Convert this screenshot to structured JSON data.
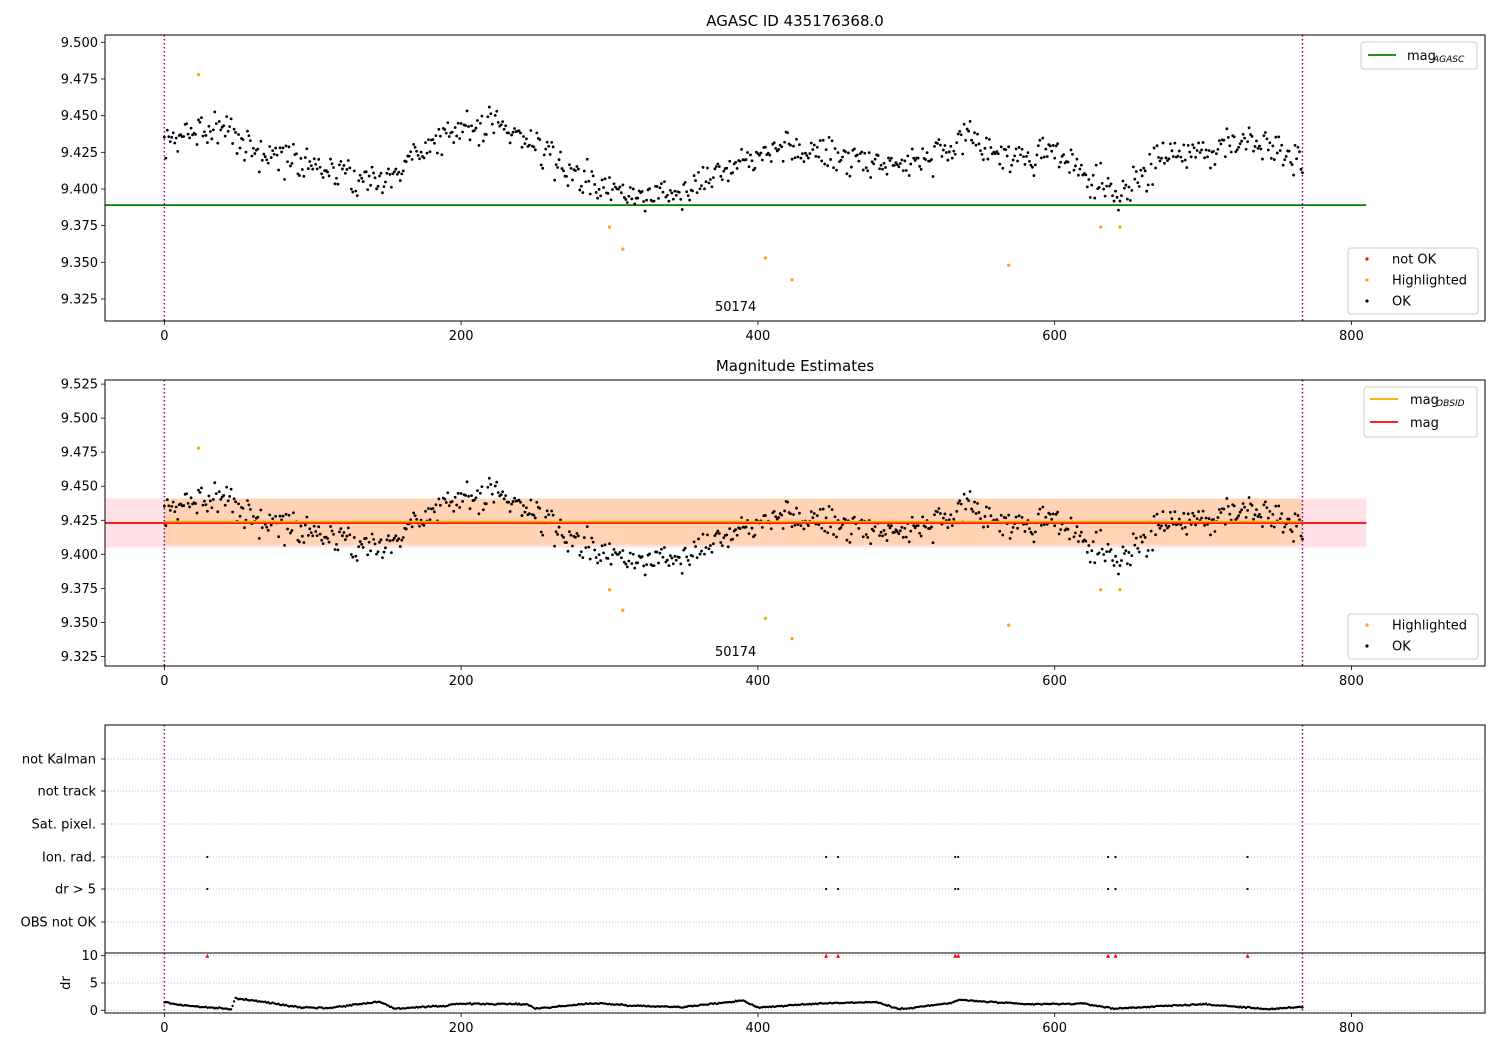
{
  "chart_data": [
    {
      "type": "scatter",
      "title": "AGASC ID 435176368.0",
      "xlim": [
        -40,
        890
      ],
      "ylim": [
        9.31,
        9.505
      ],
      "xticks": [
        0,
        200,
        400,
        600,
        800
      ],
      "yticks": [
        9.325,
        9.35,
        9.375,
        9.4,
        9.425,
        9.45,
        9.475,
        9.5
      ],
      "xlabel": "",
      "ylabel": "",
      "obsid_label": "50174",
      "obsid_label_x": 385,
      "obs_boundaries": [
        0,
        767
      ],
      "mag_agasc": 9.389,
      "mag_agasc_xrange": [
        -40,
        810
      ],
      "legend_lines": [
        {
          "name": "mag",
          "subscript": "AGASC",
          "color": "#008000"
        }
      ],
      "legend_points": [
        {
          "name": "not OK",
          "color": "#ff0000"
        },
        {
          "name": "Highlighted",
          "color": "#ffa500"
        },
        {
          "name": "OK",
          "color": "#000000"
        }
      ],
      "highlighted_points": [
        [
          23,
          9.478
        ],
        [
          300,
          9.374
        ],
        [
          309,
          9.359
        ],
        [
          405,
          9.353
        ],
        [
          423,
          9.338
        ],
        [
          569,
          9.348
        ],
        [
          631,
          9.374
        ],
        [
          644,
          9.374
        ]
      ],
      "not_ok_points": [],
      "ok_trend": [
        [
          0,
          9.428
        ],
        [
          20,
          9.44
        ],
        [
          40,
          9.445
        ],
        [
          60,
          9.425
        ],
        [
          90,
          9.42
        ],
        [
          120,
          9.41
        ],
        [
          150,
          9.405
        ],
        [
          175,
          9.43
        ],
        [
          200,
          9.44
        ],
        [
          225,
          9.445
        ],
        [
          250,
          9.43
        ],
        [
          275,
          9.41
        ],
        [
          300,
          9.398
        ],
        [
          330,
          9.395
        ],
        [
          360,
          9.405
        ],
        [
          390,
          9.42
        ],
        [
          410,
          9.43
        ],
        [
          440,
          9.425
        ],
        [
          470,
          9.42
        ],
        [
          500,
          9.418
        ],
        [
          530,
          9.425
        ],
        [
          545,
          9.435
        ],
        [
          570,
          9.42
        ],
        [
          600,
          9.425
        ],
        [
          625,
          9.405
        ],
        [
          640,
          9.395
        ],
        [
          660,
          9.41
        ],
        [
          680,
          9.425
        ],
        [
          700,
          9.425
        ],
        [
          730,
          9.435
        ],
        [
          767,
          9.42
        ]
      ]
    },
    {
      "type": "scatter",
      "title": "Magnitude Estimates",
      "xlim": [
        -40,
        890
      ],
      "ylim": [
        9.318,
        9.528
      ],
      "xticks": [
        0,
        200,
        400,
        600,
        800
      ],
      "yticks": [
        9.325,
        9.35,
        9.375,
        9.4,
        9.425,
        9.45,
        9.475,
        9.5,
        9.525
      ],
      "xlabel": "",
      "ylabel": "",
      "obsid_label": "50174",
      "obsid_label_x": 385,
      "obs_boundaries": [
        0,
        767
      ],
      "mag": 9.423,
      "mag_band": [
        9.405,
        9.441
      ],
      "mag_xrange": [
        -40,
        810
      ],
      "mag_obsid": 9.424,
      "mag_obsid_band": [
        9.407,
        9.441
      ],
      "mag_obsid_xrange": [
        0,
        767
      ],
      "legend_lines": [
        {
          "name": "mag",
          "subscript": "OBSID",
          "color": "#ffa500"
        },
        {
          "name": "mag",
          "subscript": "",
          "color": "#ff0000"
        }
      ],
      "legend_points": [
        {
          "name": "Highlighted",
          "color": "#ffa500"
        },
        {
          "name": "OK",
          "color": "#000000"
        }
      ],
      "highlighted_points": [
        [
          23,
          9.478
        ],
        [
          300,
          9.374
        ],
        [
          309,
          9.359
        ],
        [
          405,
          9.353
        ],
        [
          423,
          9.338
        ],
        [
          569,
          9.348
        ],
        [
          631,
          9.374
        ],
        [
          644,
          9.374
        ]
      ]
    },
    {
      "type": "scatter",
      "title": "",
      "xlim": [
        -40,
        890
      ],
      "xticks": [
        0,
        200,
        400,
        600,
        800
      ],
      "flag_categories": [
        "not Kalman",
        "not track",
        "Sat. pixel.",
        "Ion. rad.",
        "dr > 5",
        "OBS not OK"
      ],
      "flag_points": {
        "Ion. rad.": [
          29,
          446,
          454,
          533,
          535,
          636,
          641,
          730
        ],
        "dr > 5": [
          29,
          446,
          454,
          533,
          535,
          636,
          641,
          730
        ]
      },
      "obs_boundaries": [
        0,
        767
      ]
    },
    {
      "type": "scatter",
      "title": "",
      "xlim": [
        -40,
        890
      ],
      "ylim": [
        -0.5,
        10.5
      ],
      "xticks": [
        0,
        200,
        400,
        600,
        800
      ],
      "yticks": [
        0,
        5,
        10
      ],
      "ylabel": "dr",
      "clipped_points": [
        29,
        446,
        454,
        533,
        535,
        636,
        641,
        730
      ],
      "dr_trend": [
        [
          0,
          1.5
        ],
        [
          10,
          1.0
        ],
        [
          25,
          0.6
        ],
        [
          45,
          0.2
        ],
        [
          48,
          2.2
        ],
        [
          70,
          1.4
        ],
        [
          90,
          0.6
        ],
        [
          110,
          0.4
        ],
        [
          145,
          1.6
        ],
        [
          155,
          0.3
        ],
        [
          190,
          0.8
        ],
        [
          195,
          1.2
        ],
        [
          245,
          1.1
        ],
        [
          250,
          0.3
        ],
        [
          290,
          1.3
        ],
        [
          320,
          0.8
        ],
        [
          350,
          0.6
        ],
        [
          390,
          1.8
        ],
        [
          400,
          0.5
        ],
        [
          445,
          1.3
        ],
        [
          480,
          1.5
        ],
        [
          495,
          0.2
        ],
        [
          530,
          1.3
        ],
        [
          535,
          1.9
        ],
        [
          580,
          1.1
        ],
        [
          620,
          1.2
        ],
        [
          640,
          0.3
        ],
        [
          690,
          1.0
        ],
        [
          700,
          1.1
        ],
        [
          745,
          0.2
        ],
        [
          767,
          0.6
        ]
      ],
      "obs_boundaries": [
        0,
        767
      ]
    }
  ]
}
